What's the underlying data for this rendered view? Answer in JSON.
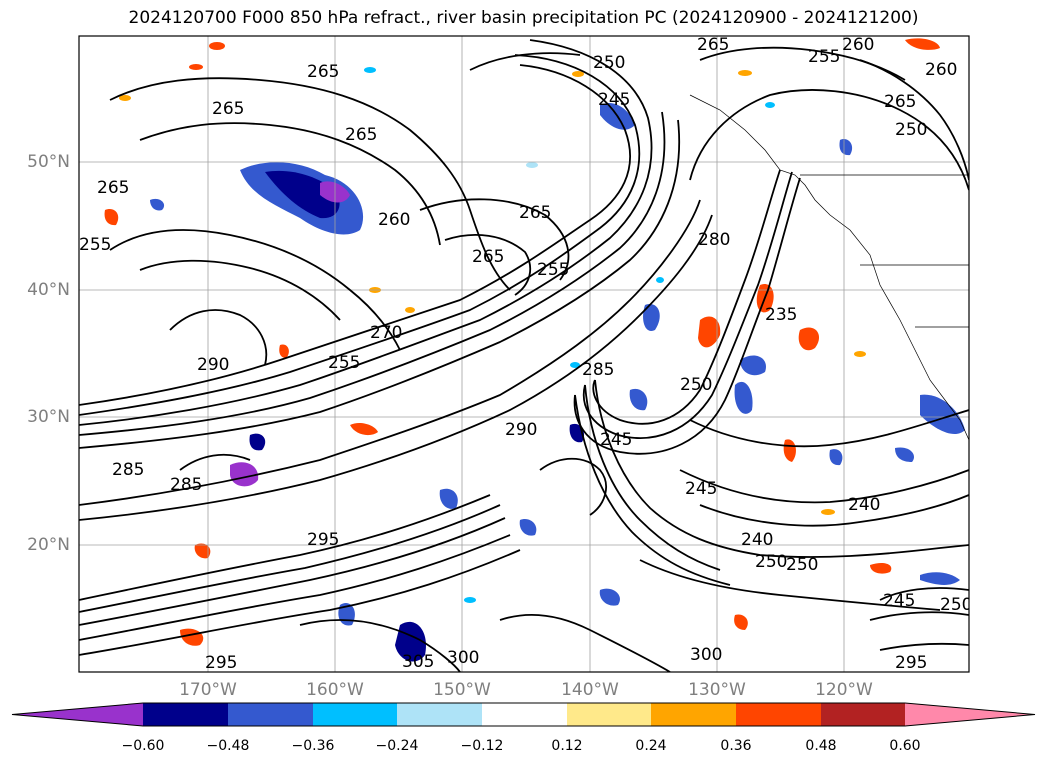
{
  "title": "2024120700 F000 850 hPa refract., river basin precipitation PC (2024120900 - 2024121200)",
  "lat_labels": [
    "50°N",
    "40°N",
    "30°N",
    "20°N"
  ],
  "lon_labels": [
    "170°W",
    "160°W",
    "150°W",
    "140°W",
    "130°W",
    "120°W"
  ],
  "contour_labels": [
    "265",
    "265",
    "265",
    "250",
    "245",
    "255",
    "265",
    "260",
    "265",
    "265",
    "265",
    "260",
    "250",
    "255",
    "265",
    "255",
    "270",
    "255",
    "285",
    "280",
    "295",
    "290",
    "285",
    "290",
    "245",
    "240",
    "250",
    "250",
    "245",
    "250",
    "240",
    "235",
    "295",
    "300",
    "305",
    "300",
    "295",
    "285",
    "250",
    "245",
    "260"
  ],
  "colorbar": {
    "tick_labels": [
      "−0.60",
      "−0.48",
      "−0.36",
      "−0.24",
      "−0.12",
      "0.12",
      "0.24",
      "0.36",
      "0.48",
      "0.60"
    ],
    "colors": [
      "#9932cc",
      "#00008b",
      "#3459cf",
      "#00bfff",
      "#aee3f7",
      "#ffffff",
      "#ffe98a",
      "#ffa500",
      "#ff4500",
      "#b22222",
      "#ff88aa"
    ]
  }
}
